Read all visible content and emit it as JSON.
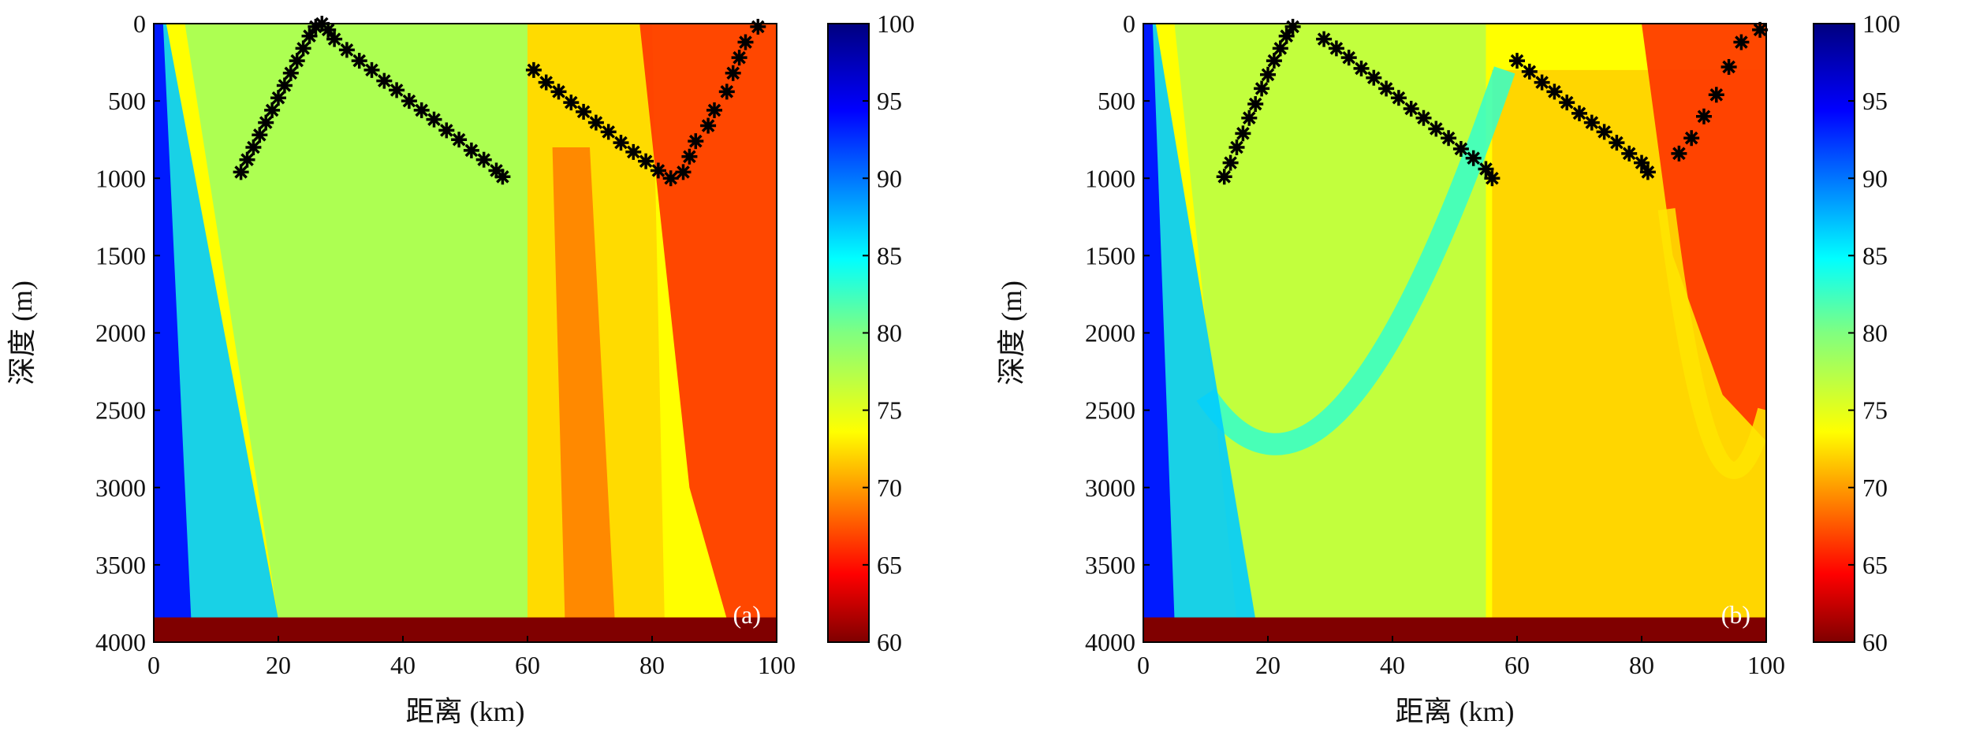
{
  "chart_data": [
    {
      "type": "heatmap",
      "panel_label": "(a)",
      "xlabel": "距离 (km)",
      "ylabel": "深度 (m)",
      "xlim": [
        0,
        100
      ],
      "ylim": [
        4000,
        0
      ],
      "x_ticks": [
        "0",
        "20",
        "40",
        "60",
        "80",
        "100"
      ],
      "y_ticks": [
        "0",
        "500",
        "1000",
        "1500",
        "2000",
        "2500",
        "3000",
        "3500",
        "4000"
      ],
      "colorbar_ticks": [
        "100",
        "95",
        "90",
        "85",
        "80",
        "75",
        "70",
        "65",
        "60"
      ],
      "colorbar_range": [
        60,
        100
      ],
      "colormap": "jet",
      "bottom_value": 100,
      "markers": [
        {
          "type": "asterisk",
          "color": "#000000",
          "points": [
            [
              14,
              960
            ],
            [
              15,
              880
            ],
            [
              16,
              800
            ],
            [
              17,
              720
            ],
            [
              18,
              640
            ],
            [
              19,
              560
            ],
            [
              20,
              480
            ],
            [
              21,
              400
            ],
            [
              22,
              320
            ],
            [
              23,
              240
            ],
            [
              24,
              160
            ],
            [
              25,
              80
            ],
            [
              26,
              20
            ],
            [
              27,
              0
            ],
            [
              28,
              40
            ],
            [
              29,
              100
            ],
            [
              31,
              170
            ],
            [
              33,
              240
            ],
            [
              35,
              300
            ],
            [
              37,
              370
            ],
            [
              39,
              430
            ],
            [
              41,
              500
            ],
            [
              43,
              560
            ],
            [
              45,
              620
            ],
            [
              47,
              690
            ],
            [
              49,
              750
            ],
            [
              51,
              820
            ],
            [
              53,
              880
            ],
            [
              55,
              950
            ],
            [
              56,
              990
            ]
          ]
        },
        {
          "type": "asterisk",
          "color": "#000000",
          "points": [
            [
              61,
              300
            ],
            [
              63,
              380
            ],
            [
              65,
              440
            ],
            [
              67,
              510
            ],
            [
              69,
              570
            ],
            [
              71,
              640
            ],
            [
              73,
              700
            ],
            [
              75,
              770
            ],
            [
              77,
              830
            ],
            [
              79,
              890
            ],
            [
              81,
              950
            ],
            [
              83,
              1000
            ],
            [
              85,
              960
            ],
            [
              86,
              860
            ],
            [
              87,
              760
            ],
            [
              89,
              660
            ],
            [
              90,
              560
            ],
            [
              92,
              440
            ],
            [
              93,
              320
            ],
            [
              94,
              220
            ],
            [
              95,
              120
            ],
            [
              97,
              20
            ]
          ]
        }
      ]
    },
    {
      "type": "heatmap",
      "panel_label": "(b)",
      "xlabel": "距离 (km)",
      "ylabel": "深度 (m)",
      "xlim": [
        0,
        100
      ],
      "ylim": [
        4000,
        0
      ],
      "x_ticks": [
        "0",
        "20",
        "40",
        "60",
        "80",
        "100"
      ],
      "y_ticks": [
        "0",
        "500",
        "1000",
        "1500",
        "2000",
        "2500",
        "3000",
        "3500",
        "4000"
      ],
      "colorbar_ticks": [
        "100",
        "95",
        "90",
        "85",
        "80",
        "75",
        "70",
        "65",
        "60"
      ],
      "colorbar_range": [
        60,
        100
      ],
      "colormap": "jet",
      "bottom_value": 100,
      "markers": [
        {
          "type": "asterisk",
          "color": "#000000",
          "points": [
            [
              13,
              990
            ],
            [
              14,
              900
            ],
            [
              15,
              800
            ],
            [
              16,
              710
            ],
            [
              17,
              610
            ],
            [
              18,
              520
            ],
            [
              19,
              420
            ],
            [
              20,
              330
            ],
            [
              21,
              240
            ],
            [
              22,
              160
            ],
            [
              23,
              80
            ],
            [
              24,
              20
            ],
            [
              29,
              100
            ],
            [
              31,
              160
            ],
            [
              33,
              220
            ],
            [
              35,
              290
            ],
            [
              37,
              350
            ],
            [
              39,
              420
            ],
            [
              41,
              480
            ],
            [
              43,
              550
            ],
            [
              45,
              610
            ],
            [
              47,
              680
            ],
            [
              49,
              740
            ],
            [
              51,
              810
            ],
            [
              53,
              870
            ],
            [
              55,
              940
            ],
            [
              56,
              1000
            ]
          ]
        },
        {
          "type": "asterisk",
          "color": "#000000",
          "points": [
            [
              60,
              240
            ],
            [
              62,
              310
            ],
            [
              64,
              380
            ],
            [
              66,
              440
            ],
            [
              68,
              510
            ],
            [
              70,
              580
            ],
            [
              72,
              640
            ],
            [
              74,
              700
            ],
            [
              76,
              770
            ],
            [
              78,
              840
            ],
            [
              80,
              900
            ],
            [
              81,
              960
            ],
            [
              86,
              840
            ],
            [
              88,
              740
            ],
            [
              90,
              600
            ],
            [
              92,
              460
            ],
            [
              94,
              280
            ],
            [
              96,
              120
            ],
            [
              99,
              40
            ]
          ]
        }
      ]
    }
  ]
}
